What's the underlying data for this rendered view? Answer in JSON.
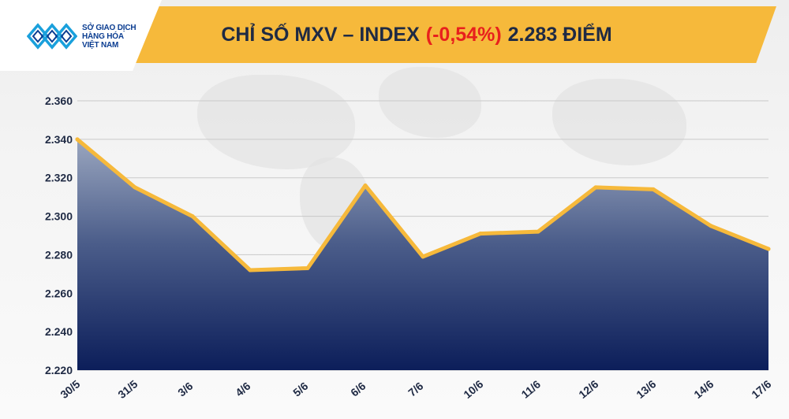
{
  "header": {
    "title_prefix": "CHỈ SỐ MXV – INDEX",
    "title_change": "(-0,54%)",
    "title_suffix": "2.283 ĐIỂM",
    "logo_line1": "SỞ GIAO DỊCH",
    "logo_line2": "HÀNG HÓA",
    "logo_line3": "VIỆT NAM"
  },
  "colors": {
    "banner": "#f6b93b",
    "line": "#f6b93b",
    "area_top": "#9aa6bf",
    "area_bottom": "#0c1e5a",
    "change_text": "#e8201d",
    "logo": "#0b3d91"
  },
  "chart_data": {
    "type": "area",
    "title": "CHỈ SỐ MXV – INDEX (-0,54%) 2.283 ĐIỂM",
    "xlabel": "",
    "ylabel": "",
    "categories": [
      "30/5",
      "31/5",
      "3/6",
      "4/6",
      "5/6",
      "6/6",
      "7/6",
      "10/6",
      "11/6",
      "12/6",
      "13/6",
      "14/6",
      "17/6"
    ],
    "values": [
      2340,
      2315,
      2300,
      2272,
      2273,
      2316,
      2279,
      2291,
      2292,
      2315,
      2314,
      2295,
      2283
    ],
    "ylim": [
      2220,
      2360
    ],
    "yticks": [
      2220,
      2240,
      2260,
      2280,
      2300,
      2320,
      2340,
      2360
    ],
    "ytick_labels": [
      "2.220",
      "2.240",
      "2.260",
      "2.280",
      "2.300",
      "2.320",
      "2.340",
      "2.360"
    ],
    "grid": true,
    "legend": "none"
  }
}
